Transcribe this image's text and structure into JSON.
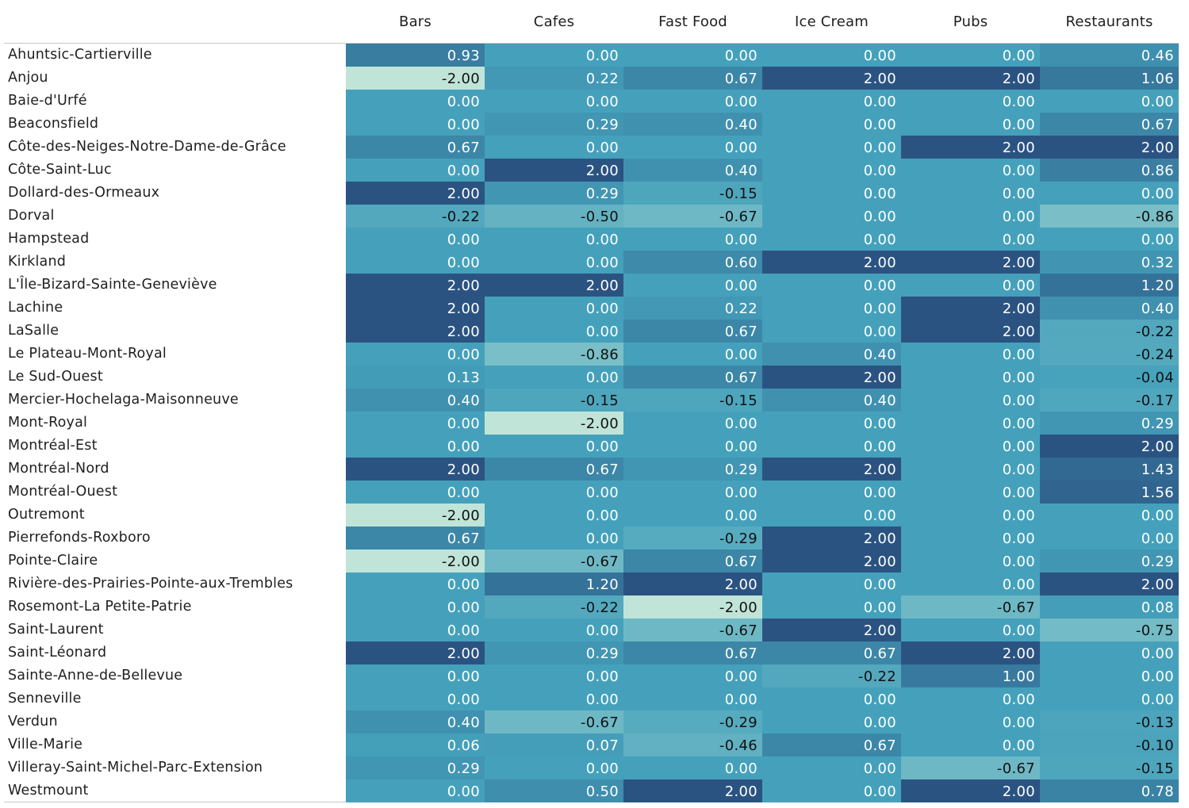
{
  "chart_data": {
    "type": "heatmap",
    "columns": [
      "Bars",
      "Cafes",
      "Fast Food",
      "Ice Cream",
      "Pubs",
      "Restaurants"
    ],
    "rows": [
      "Ahuntsic-Cartierville",
      "Anjou",
      "Baie-d'Urfé",
      "Beaconsfield",
      "Côte-des-Neiges-Notre-Dame-de-Grâce",
      "Côte-Saint-Luc",
      "Dollard-des-Ormeaux",
      "Dorval",
      "Hampstead",
      "Kirkland",
      "L'Île-Bizard-Sainte-Geneviève",
      "Lachine",
      "LaSalle",
      "Le Plateau-Mont-Royal",
      "Le Sud-Ouest",
      "Mercier-Hochelaga-Maisonneuve",
      "Mont-Royal",
      "Montréal-Est",
      "Montréal-Nord",
      "Montréal-Ouest",
      "Outremont",
      "Pierrefonds-Roxboro",
      "Pointe-Claire",
      "Rivière-des-Prairies-Pointe-aux-Trembles",
      "Rosemont-La Petite-Patrie",
      "Saint-Laurent",
      "Saint-Léonard",
      "Sainte-Anne-de-Bellevue",
      "Senneville",
      "Verdun",
      "Ville-Marie",
      "Villeray-Saint-Michel-Parc-Extension",
      "Westmount"
    ],
    "values": [
      [
        "0.93",
        "0.00",
        "0.00",
        "0.00",
        "0.00",
        "0.46"
      ],
      [
        "-2.00",
        "0.22",
        "0.67",
        "2.00",
        "2.00",
        "1.06"
      ],
      [
        "0.00",
        "0.00",
        "0.00",
        "0.00",
        "0.00",
        "0.00"
      ],
      [
        "0.00",
        "0.29",
        "0.40",
        "0.00",
        "0.00",
        "0.67"
      ],
      [
        "0.67",
        "0.00",
        "0.00",
        "0.00",
        "2.00",
        "2.00"
      ],
      [
        "0.00",
        "2.00",
        "0.40",
        "0.00",
        "0.00",
        "0.86"
      ],
      [
        "2.00",
        "0.29",
        "-0.15",
        "0.00",
        "0.00",
        "0.00"
      ],
      [
        "-0.22",
        "-0.50",
        "-0.67",
        "0.00",
        "0.00",
        "-0.86"
      ],
      [
        "0.00",
        "0.00",
        "0.00",
        "0.00",
        "0.00",
        "0.00"
      ],
      [
        "0.00",
        "0.00",
        "0.60",
        "2.00",
        "2.00",
        "0.32"
      ],
      [
        "2.00",
        "2.00",
        "0.00",
        "0.00",
        "0.00",
        "1.20"
      ],
      [
        "2.00",
        "0.00",
        "0.22",
        "0.00",
        "2.00",
        "0.40"
      ],
      [
        "2.00",
        "0.00",
        "0.67",
        "0.00",
        "2.00",
        "-0.22"
      ],
      [
        "0.00",
        "-0.86",
        "0.00",
        "0.40",
        "0.00",
        "-0.24"
      ],
      [
        "0.13",
        "0.00",
        "0.67",
        "2.00",
        "0.00",
        "-0.04"
      ],
      [
        "0.40",
        "-0.15",
        "-0.15",
        "0.40",
        "0.00",
        "-0.17"
      ],
      [
        "0.00",
        "-2.00",
        "0.00",
        "0.00",
        "0.00",
        "0.29"
      ],
      [
        "0.00",
        "0.00",
        "0.00",
        "0.00",
        "0.00",
        "2.00"
      ],
      [
        "2.00",
        "0.67",
        "0.29",
        "2.00",
        "0.00",
        "1.43"
      ],
      [
        "0.00",
        "0.00",
        "0.00",
        "0.00",
        "0.00",
        "1.56"
      ],
      [
        "-2.00",
        "0.00",
        "0.00",
        "0.00",
        "0.00",
        "0.00"
      ],
      [
        "0.67",
        "0.00",
        "-0.29",
        "2.00",
        "0.00",
        "0.00"
      ],
      [
        "-2.00",
        "-0.67",
        "0.67",
        "2.00",
        "0.00",
        "0.29"
      ],
      [
        "0.00",
        "1.20",
        "2.00",
        "0.00",
        "0.00",
        "2.00"
      ],
      [
        "0.00",
        "-0.22",
        "-2.00",
        "0.00",
        "-0.67",
        "0.08"
      ],
      [
        "0.00",
        "0.00",
        "-0.67",
        "2.00",
        "0.00",
        "-0.75"
      ],
      [
        "2.00",
        "0.29",
        "0.67",
        "0.67",
        "2.00",
        "0.00"
      ],
      [
        "0.00",
        "0.00",
        "0.00",
        "-0.22",
        "1.00",
        "0.00"
      ],
      [
        "0.00",
        "0.00",
        "0.00",
        "0.00",
        "0.00",
        "0.00"
      ],
      [
        "0.40",
        "-0.67",
        "-0.29",
        "0.00",
        "0.00",
        "-0.13"
      ],
      [
        "0.06",
        "0.07",
        "-0.46",
        "0.67",
        "0.00",
        "-0.10"
      ],
      [
        "0.29",
        "0.00",
        "0.00",
        "0.00",
        "-0.67",
        "-0.15"
      ],
      [
        "0.00",
        "0.50",
        "2.00",
        "0.00",
        "2.00",
        "0.78"
      ]
    ],
    "value_range": [
      -2,
      2
    ],
    "colormap": {
      "low": "#c0e5d8",
      "mid": "#45a1bb",
      "high": "#2b5382"
    },
    "text_colors": {
      "light": "#ffffff",
      "dark": "#111111"
    }
  }
}
